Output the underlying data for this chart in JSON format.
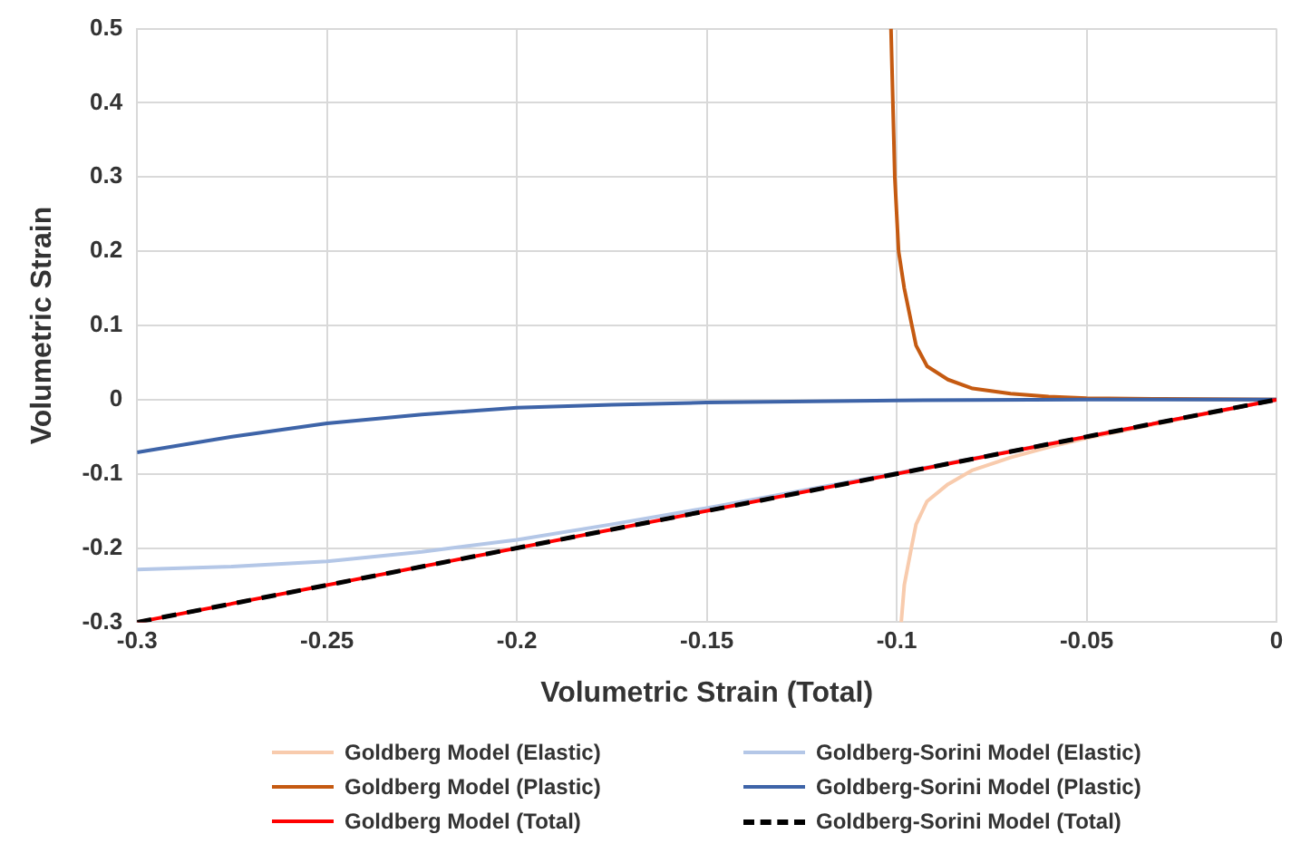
{
  "chart_data": {
    "type": "line",
    "xlabel": "Volumetric Strain (Total)",
    "ylabel": "Volumetric Strain",
    "xlim": [
      -0.3,
      0
    ],
    "xticks": [
      -0.3,
      -0.25,
      -0.2,
      -0.15,
      -0.1,
      -0.05,
      0
    ],
    "ylim": [
      -0.3,
      0.5
    ],
    "yticks": [
      -0.3,
      -0.2,
      -0.1,
      0,
      0.1,
      0.2,
      0.3,
      0.4,
      0.5
    ],
    "grid": true,
    "legend": "bottom",
    "marker": "none",
    "series": [
      {
        "name": "Goldberg Model (Elastic)",
        "color": "#f8cbad",
        "x": [
          -0.0988,
          -0.098,
          -0.096,
          -0.0949,
          -0.092,
          -0.0865,
          -0.08,
          -0.07,
          -0.06,
          -0.05,
          -0.03,
          0
        ],
        "values": [
          -0.3,
          -0.25,
          -0.196,
          -0.168,
          -0.137,
          -0.114,
          -0.095,
          -0.078,
          -0.064,
          -0.052,
          -0.031,
          0
        ]
      },
      {
        "name": "Goldberg-Sorini Model (Elastic)",
        "color": "#b4c7e7",
        "x": [
          -0.3,
          -0.275,
          -0.25,
          -0.225,
          -0.2,
          -0.175,
          -0.15,
          -0.1,
          -0.05,
          0
        ],
        "values": [
          -0.229,
          -0.225,
          -0.218,
          -0.205,
          -0.189,
          -0.168,
          -0.146,
          -0.099,
          -0.05,
          0
        ]
      },
      {
        "name": "Goldberg Model (Plastic)",
        "color": "#c55a11",
        "x": [
          -0.1015,
          -0.101,
          -0.1005,
          -0.0995,
          -0.098,
          -0.096,
          -0.0949,
          -0.092,
          -0.0865,
          -0.08,
          -0.07,
          -0.06,
          -0.05,
          -0.03,
          0
        ],
        "values": [
          0.5,
          0.4,
          0.3,
          0.2,
          0.15,
          0.1,
          0.073,
          0.045,
          0.027,
          0.015,
          0.008,
          0.004,
          0.002,
          0.001,
          0
        ]
      },
      {
        "name": "Goldberg-Sorini Model (Plastic)",
        "color": "#3e64a8",
        "x": [
          -0.3,
          -0.275,
          -0.25,
          -0.225,
          -0.2,
          -0.175,
          -0.15,
          -0.1,
          -0.05,
          0
        ],
        "values": [
          -0.071,
          -0.05,
          -0.032,
          -0.02,
          -0.011,
          -0.007,
          -0.004,
          -0.001,
          0,
          0
        ]
      },
      {
        "name": "Goldberg Model (Total)",
        "color": "#ff0000",
        "x": [
          -0.3,
          0
        ],
        "values": [
          -0.3,
          0
        ]
      },
      {
        "name": "Goldberg-Sorini Model (Total)",
        "color": "#000000",
        "line_style": "dashed",
        "x": [
          -0.3,
          0
        ],
        "values": [
          -0.3,
          0
        ]
      }
    ]
  }
}
